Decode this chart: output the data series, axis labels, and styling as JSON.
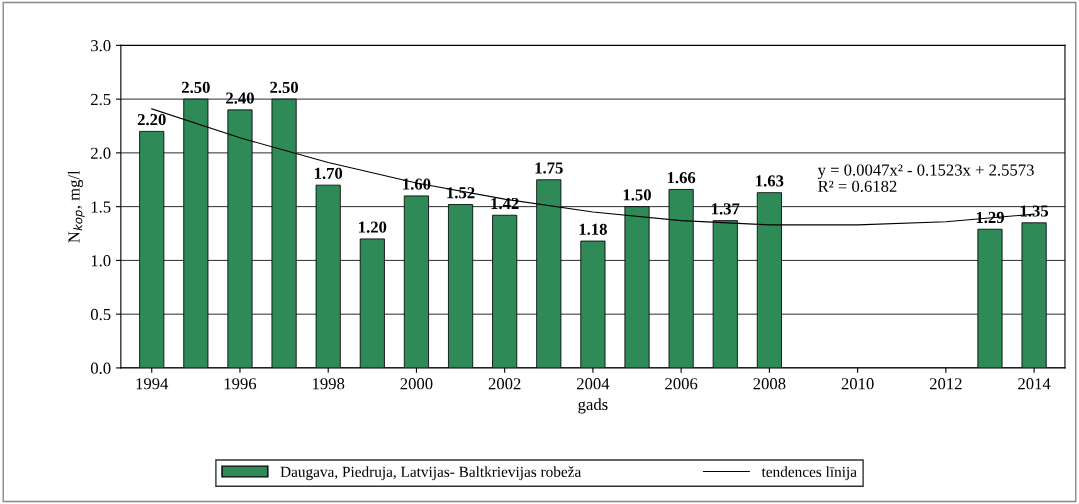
{
  "chart_data": {
    "type": "bar",
    "xlabel": "gads",
    "ylabel": "N$_{kop}$, mg/l",
    "xlim": [
      1993.3,
      2014.7
    ],
    "xticks": [
      1994,
      1996,
      1998,
      2000,
      2002,
      2004,
      2006,
      2008,
      2010,
      2012,
      2014
    ],
    "ylim": [
      0,
      3.0
    ],
    "yticks": [
      {
        "value": 0,
        "label": "0.0"
      },
      {
        "value": 0.5,
        "label": "0.5"
      },
      {
        "value": 1.0,
        "label": "1.0"
      },
      {
        "value": 1.5,
        "label": "1.5"
      },
      {
        "value": 2.0,
        "label": "2.0"
      },
      {
        "value": 2.5,
        "label": "2.5"
      },
      {
        "value": 3.0,
        "label": "3.0"
      }
    ],
    "grid": "y",
    "legend": "bottom",
    "series": [
      {
        "name": "Daugava, Piedruja, Latvijas- Baltkrievijas robeža",
        "color": "#2e8b57",
        "x": [
          1994,
          1995,
          1996,
          1997,
          1998,
          1999,
          2000,
          2001,
          2002,
          2003,
          2004,
          2005,
          2006,
          2007,
          2008,
          2013,
          2014
        ],
        "values": [
          2.2,
          2.5,
          2.4,
          2.5,
          1.7,
          1.2,
          1.6,
          1.52,
          1.42,
          1.75,
          1.18,
          1.5,
          1.66,
          1.37,
          1.63,
          1.29,
          1.35
        ],
        "value_labels": [
          "2.20",
          "2.50",
          "2.40",
          "2.50",
          "1.70",
          "1.20",
          "1.60",
          "1.52",
          "1.42",
          "1.75",
          "1.18",
          "1.50",
          "1.66",
          "1.37",
          "1.63",
          "1.29",
          "1.35"
        ]
      },
      {
        "name": "tendences līnija",
        "type": "line",
        "color": "#000000",
        "x": [
          1994,
          1996,
          1998,
          2000,
          2002,
          2004,
          2006,
          2008,
          2010,
          2012,
          2014
        ],
        "values": [
          2.41,
          2.14,
          1.91,
          1.72,
          1.57,
          1.45,
          1.37,
          1.33,
          1.33,
          1.36,
          1.43
        ]
      }
    ],
    "annotations": [
      "y = 0.0047x² - 0.1523x + 2.5573\nR² = 0.6182"
    ]
  }
}
